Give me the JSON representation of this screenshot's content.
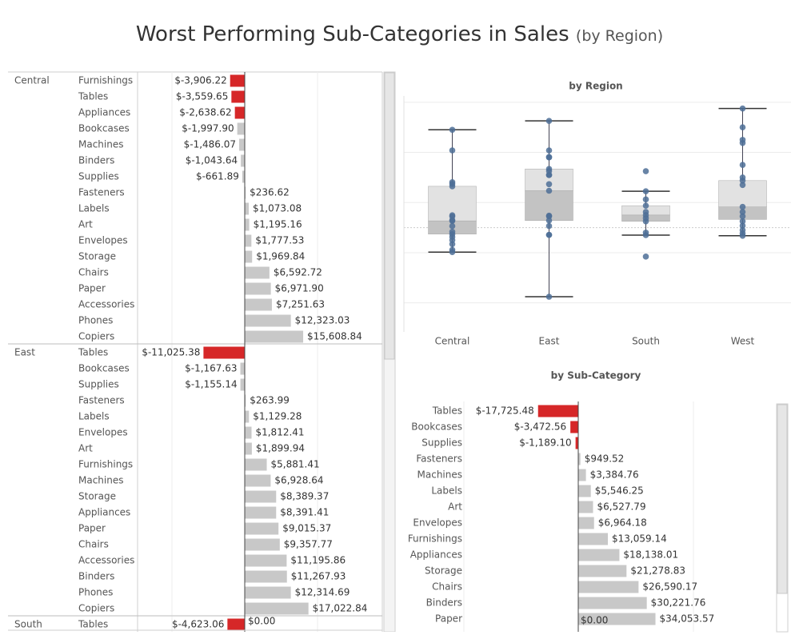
{
  "title": {
    "main": "Worst Performing Sub-Categories in Sales",
    "sub": "(by Region)"
  },
  "zero_label": "$0.00",
  "colors": {
    "negative": "#d62728",
    "positive": "#c8c8c8",
    "box_dot": "#4e6f97",
    "box_upper": "#e2e2e2",
    "box_lower": "#c3c3c3"
  },
  "chart_data": [
    {
      "type": "bar",
      "orientation": "horizontal",
      "name": "region_subcategory",
      "groups": [
        {
          "region": "Central",
          "rows": [
            {
              "label": "Furnishings",
              "value": -3906.22,
              "text": "$-3,906.22"
            },
            {
              "label": "Tables",
              "value": -3559.65,
              "text": "$-3,559.65"
            },
            {
              "label": "Appliances",
              "value": -2638.62,
              "text": "$-2,638.62"
            },
            {
              "label": "Bookcases",
              "value": -1997.9,
              "text": "$-1,997.90"
            },
            {
              "label": "Machines",
              "value": -1486.07,
              "text": "$-1,486.07"
            },
            {
              "label": "Binders",
              "value": -1043.64,
              "text": "$-1,043.64"
            },
            {
              "label": "Supplies",
              "value": -661.89,
              "text": "$-661.89"
            },
            {
              "label": "Fasteners",
              "value": 236.62,
              "text": "$236.62"
            },
            {
              "label": "Labels",
              "value": 1073.08,
              "text": "$1,073.08"
            },
            {
              "label": "Art",
              "value": 1195.16,
              "text": "$1,195.16"
            },
            {
              "label": "Envelopes",
              "value": 1777.53,
              "text": "$1,777.53"
            },
            {
              "label": "Storage",
              "value": 1969.84,
              "text": "$1,969.84"
            },
            {
              "label": "Chairs",
              "value": 6592.72,
              "text": "$6,592.72"
            },
            {
              "label": "Paper",
              "value": 6971.9,
              "text": "$6,971.90"
            },
            {
              "label": "Accessories",
              "value": 7251.63,
              "text": "$7,251.63"
            },
            {
              "label": "Phones",
              "value": 12323.03,
              "text": "$12,323.03"
            },
            {
              "label": "Copiers",
              "value": 15608.84,
              "text": "$15,608.84"
            }
          ]
        },
        {
          "region": "East",
          "rows": [
            {
              "label": "Tables",
              "value": -11025.38,
              "text": "$-11,025.38"
            },
            {
              "label": "Bookcases",
              "value": -1167.63,
              "text": "$-1,167.63"
            },
            {
              "label": "Supplies",
              "value": -1155.14,
              "text": "$-1,155.14"
            },
            {
              "label": "Fasteners",
              "value": 263.99,
              "text": "$263.99"
            },
            {
              "label": "Labels",
              "value": 1129.28,
              "text": "$1,129.28"
            },
            {
              "label": "Envelopes",
              "value": 1812.41,
              "text": "$1,812.41"
            },
            {
              "label": "Art",
              "value": 1899.94,
              "text": "$1,899.94"
            },
            {
              "label": "Furnishings",
              "value": 5881.41,
              "text": "$5,881.41"
            },
            {
              "label": "Machines",
              "value": 6928.64,
              "text": "$6,928.64"
            },
            {
              "label": "Storage",
              "value": 8389.37,
              "text": "$8,389.37"
            },
            {
              "label": "Appliances",
              "value": 8391.41,
              "text": "$8,391.41"
            },
            {
              "label": "Paper",
              "value": 9015.37,
              "text": "$9,015.37"
            },
            {
              "label": "Chairs",
              "value": 9357.77,
              "text": "$9,357.77"
            },
            {
              "label": "Accessories",
              "value": 11195.86,
              "text": "$11,195.86"
            },
            {
              "label": "Binders",
              "value": 11267.93,
              "text": "$11,267.93"
            },
            {
              "label": "Phones",
              "value": 12314.69,
              "text": "$12,314.69"
            },
            {
              "label": "Copiers",
              "value": 17022.84,
              "text": "$17,022.84"
            }
          ]
        },
        {
          "region": "South",
          "rows": [
            {
              "label": "Tables",
              "value": -4623.06,
              "text": "$-4,623.06"
            }
          ]
        }
      ]
    },
    {
      "type": "box",
      "title": "by Region",
      "categories": [
        "Central",
        "East",
        "South",
        "West"
      ],
      "ylim": [
        -16000,
        21000
      ],
      "gridlines": [
        -12000,
        -4000,
        4000,
        12000,
        20000
      ],
      "series": [
        {
          "category": "Central",
          "whisker_low": -3906,
          "q1": -1043,
          "median": 1073,
          "q3": 6592,
          "whisker_high": 15609,
          "points": [
            -3906,
            -3560,
            -2639,
            -1998,
            -1486,
            -1044,
            -662,
            237,
            1073,
            1195,
            1778,
            1970,
            6593,
            6972,
            7252,
            12323,
            15609
          ]
        },
        {
          "category": "East",
          "whisker_low": -11025,
          "q1": 1129,
          "median": 5881,
          "q3": 9358,
          "whisker_high": 17023,
          "points": [
            -11025,
            -1168,
            -1155,
            264,
            1129,
            1812,
            1900,
            5881,
            6929,
            8389,
            8391,
            9015,
            9358,
            11196,
            11268,
            12315,
            17023
          ]
        },
        {
          "category": "South",
          "whisker_low": -1200,
          "q1": 1000,
          "median": 2000,
          "q3": 3500,
          "whisker_high": 5800,
          "points": [
            -4623,
            -1200,
            -800,
            1000,
            1500,
            2000,
            2500,
            3500,
            4500,
            5800,
            9000
          ]
        },
        {
          "category": "West",
          "whisker_low": -1300,
          "q1": 1300,
          "median": 3300,
          "q3": 7500,
          "whisker_high": 19000,
          "points": [
            -1300,
            -900,
            -400,
            300,
            1000,
            1800,
            2500,
            3300,
            6800,
            7500,
            8000,
            10000,
            13500,
            14000,
            16000,
            19000
          ]
        }
      ]
    },
    {
      "type": "bar",
      "orientation": "horizontal",
      "title": "by Sub-Category",
      "rows": [
        {
          "label": "Tables",
          "value": -17725.48,
          "text": "$-17,725.48"
        },
        {
          "label": "Bookcases",
          "value": -3472.56,
          "text": "$-3,472.56"
        },
        {
          "label": "Supplies",
          "value": -1189.1,
          "text": "$-1,189.10"
        },
        {
          "label": "Fasteners",
          "value": 949.52,
          "text": "$949.52"
        },
        {
          "label": "Machines",
          "value": 3384.76,
          "text": "$3,384.76"
        },
        {
          "label": "Labels",
          "value": 5546.25,
          "text": "$5,546.25"
        },
        {
          "label": "Art",
          "value": 6527.79,
          "text": "$6,527.79"
        },
        {
          "label": "Envelopes",
          "value": 6964.18,
          "text": "$6,964.18"
        },
        {
          "label": "Furnishings",
          "value": 13059.14,
          "text": "$13,059.14"
        },
        {
          "label": "Appliances",
          "value": 18138.01,
          "text": "$18,138.01"
        },
        {
          "label": "Storage",
          "value": 21278.83,
          "text": "$21,278.83"
        },
        {
          "label": "Chairs",
          "value": 26590.17,
          "text": "$26,590.17"
        },
        {
          "label": "Binders",
          "value": 30221.76,
          "text": "$30,221.76"
        },
        {
          "label": "Paper",
          "value": 34053.57,
          "text": "$34,053.57"
        }
      ]
    }
  ]
}
